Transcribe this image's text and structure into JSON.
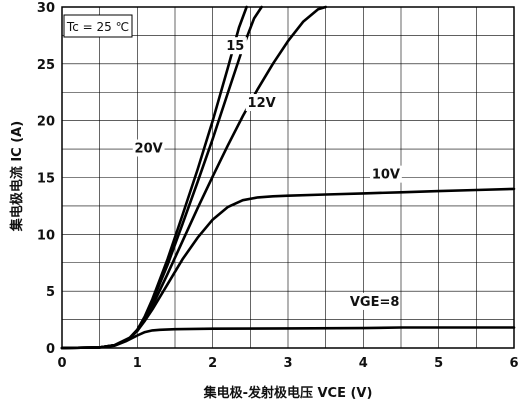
{
  "chart_data": {
    "type": "line",
    "xlabel": "集电极-发射极电压 VCE (V)",
    "ylabel": "集电极电流 IC (A)",
    "xlim": [
      0,
      6
    ],
    "ylim": [
      0,
      30
    ],
    "x_ticks": [
      "0",
      "1",
      "2",
      "3",
      "4",
      "5",
      "6"
    ],
    "y_ticks": [
      "0",
      "5",
      "10",
      "15",
      "20",
      "25",
      "30"
    ],
    "grid": true,
    "annotation": "Tc = 25 ℃",
    "series": [
      {
        "name": "20V",
        "x": [
          0,
          0.5,
          0.7,
          0.9,
          1.0,
          1.1,
          1.2,
          1.4,
          1.6,
          1.8,
          2.0,
          2.2,
          2.35,
          2.45
        ],
        "y": [
          0,
          0.05,
          0.25,
          0.9,
          1.6,
          2.8,
          4.3,
          7.8,
          11.7,
          15.7,
          20,
          24.6,
          28.2,
          30
        ]
      },
      {
        "name": "15",
        "x": [
          0,
          0.5,
          0.7,
          0.9,
          1.0,
          1.1,
          1.2,
          1.4,
          1.6,
          1.8,
          2.0,
          2.2,
          2.4,
          2.55,
          2.65
        ],
        "y": [
          0,
          0.05,
          0.25,
          0.9,
          1.6,
          2.7,
          4.1,
          7.3,
          10.9,
          14.6,
          18.4,
          22.4,
          26.4,
          29.0,
          30
        ]
      },
      {
        "name": "12V",
        "x": [
          0,
          0.5,
          0.7,
          0.9,
          1.0,
          1.1,
          1.2,
          1.4,
          1.6,
          1.8,
          2.0,
          2.2,
          2.4,
          2.6,
          2.8,
          3.0,
          3.2,
          3.4,
          3.5
        ],
        "y": [
          0,
          0.05,
          0.25,
          0.9,
          1.5,
          2.5,
          3.7,
          6.5,
          9.4,
          12.3,
          15.1,
          17.8,
          20.4,
          22.8,
          25.0,
          27.0,
          28.7,
          29.8,
          30
        ]
      },
      {
        "name": "10V",
        "x": [
          0,
          0.5,
          0.7,
          0.9,
          1.0,
          1.1,
          1.2,
          1.4,
          1.6,
          1.8,
          2.0,
          2.2,
          2.4,
          2.6,
          2.8,
          3.0,
          3.5,
          4.0,
          4.5,
          5.0,
          5.5,
          6.0
        ],
        "y": [
          0,
          0.05,
          0.25,
          0.9,
          1.5,
          2.4,
          3.4,
          5.6,
          7.8,
          9.7,
          11.3,
          12.4,
          13.0,
          13.25,
          13.35,
          13.4,
          13.5,
          13.6,
          13.7,
          13.8,
          13.9,
          14.0
        ]
      },
      {
        "name": "VGE=8",
        "x": [
          0,
          0.5,
          0.7,
          0.85,
          1.0,
          1.1,
          1.2,
          1.3,
          1.5,
          2.0,
          3.0,
          4.0,
          4.5,
          5.0,
          6.0
        ],
        "y": [
          0,
          0.05,
          0.2,
          0.6,
          1.1,
          1.4,
          1.55,
          1.6,
          1.65,
          1.7,
          1.72,
          1.75,
          1.8,
          1.8,
          1.8
        ]
      }
    ]
  }
}
